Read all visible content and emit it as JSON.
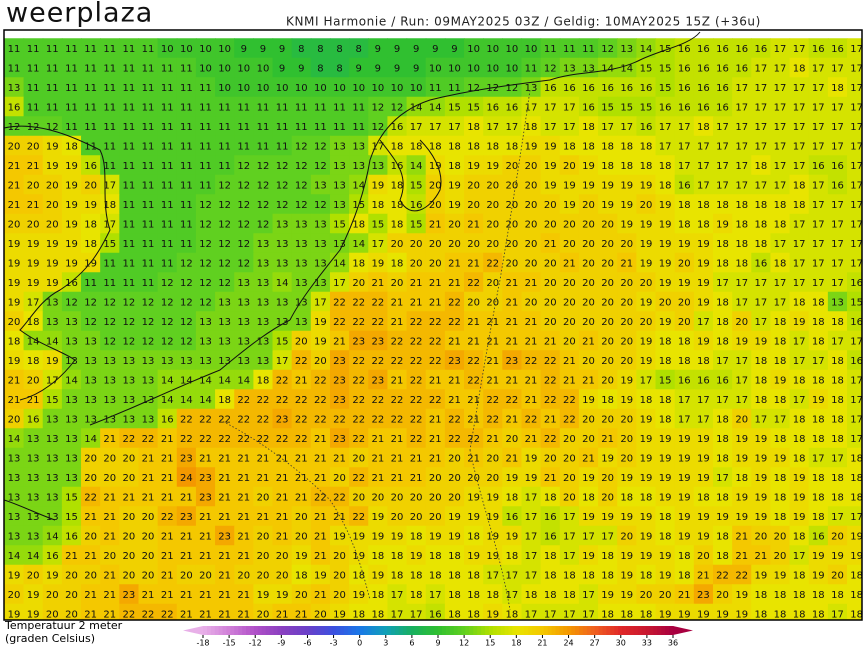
{
  "header": {
    "logo": "weerplaza",
    "run_info": "KNMI Harmonie / Run: 09MAY2025 03Z / Geldig: 10MAY2025 15Z (+36u)"
  },
  "map": {
    "rows": [
      [
        11,
        11,
        11,
        11,
        11,
        11,
        11,
        11,
        10,
        10,
        10,
        10,
        9,
        9,
        9,
        8,
        8,
        8,
        8,
        9,
        9,
        9,
        9,
        9,
        10,
        10,
        10,
        10,
        11,
        11,
        11,
        12,
        13,
        14,
        15,
        16,
        16,
        16,
        16,
        16,
        17,
        17,
        16,
        16,
        17
      ],
      [
        11,
        11,
        11,
        11,
        11,
        11,
        11,
        11,
        11,
        11,
        10,
        10,
        10,
        10,
        9,
        9,
        8,
        8,
        9,
        9,
        9,
        9,
        10,
        10,
        10,
        10,
        10,
        11,
        12,
        13,
        13,
        14,
        14,
        15,
        15,
        16,
        16,
        16,
        16,
        17,
        17,
        18,
        17,
        17,
        17
      ],
      [
        13,
        11,
        11,
        11,
        11,
        11,
        11,
        11,
        11,
        11,
        11,
        10,
        10,
        10,
        10,
        10,
        10,
        10,
        10,
        10,
        10,
        10,
        11,
        11,
        12,
        12,
        12,
        13,
        16,
        16,
        16,
        16,
        16,
        16,
        15,
        16,
        16,
        16,
        17,
        17,
        17,
        17,
        17,
        18,
        17
      ],
      [
        16,
        11,
        11,
        11,
        11,
        11,
        11,
        11,
        11,
        11,
        11,
        11,
        11,
        11,
        11,
        11,
        11,
        11,
        11,
        12,
        12,
        14,
        14,
        15,
        15,
        16,
        16,
        17,
        17,
        17,
        16,
        15,
        15,
        15,
        16,
        16,
        16,
        16,
        17,
        17,
        17,
        17,
        17,
        17,
        17
      ],
      [
        12,
        12,
        12,
        11,
        11,
        11,
        11,
        11,
        11,
        11,
        11,
        11,
        11,
        11,
        11,
        11,
        11,
        11,
        11,
        12,
        16,
        17,
        17,
        17,
        18,
        17,
        17,
        18,
        17,
        17,
        18,
        17,
        17,
        16,
        17,
        17,
        18,
        17,
        17,
        17,
        17,
        17,
        17,
        17,
        17
      ],
      [
        20,
        20,
        19,
        18,
        11,
        11,
        11,
        11,
        11,
        11,
        11,
        11,
        11,
        11,
        11,
        12,
        12,
        13,
        13,
        17,
        18,
        18,
        18,
        18,
        18,
        18,
        18,
        19,
        19,
        18,
        18,
        18,
        18,
        18,
        17,
        17,
        17,
        17,
        17,
        17,
        17,
        17,
        17,
        17,
        17
      ],
      [
        21,
        21,
        19,
        19,
        16,
        11,
        11,
        11,
        11,
        11,
        11,
        11,
        12,
        12,
        12,
        12,
        12,
        13,
        13,
        13,
        16,
        14,
        19,
        18,
        19,
        19,
        20,
        20,
        19,
        20,
        19,
        18,
        18,
        18,
        18,
        17,
        17,
        17,
        17,
        18,
        17,
        17,
        16,
        16,
        17
      ],
      [
        21,
        20,
        20,
        19,
        20,
        17,
        11,
        11,
        11,
        11,
        11,
        12,
        12,
        12,
        12,
        12,
        13,
        13,
        14,
        19,
        18,
        15,
        20,
        19,
        20,
        20,
        20,
        20,
        19,
        19,
        19,
        19,
        19,
        19,
        18,
        16,
        17,
        17,
        17,
        17,
        17,
        18,
        17,
        16,
        17
      ],
      [
        21,
        21,
        20,
        19,
        19,
        18,
        11,
        11,
        11,
        11,
        12,
        12,
        12,
        12,
        12,
        12,
        12,
        13,
        15,
        18,
        18,
        16,
        20,
        19,
        20,
        20,
        20,
        20,
        20,
        19,
        20,
        19,
        19,
        20,
        19,
        18,
        18,
        18,
        18,
        18,
        18,
        18,
        17,
        17,
        17
      ],
      [
        20,
        20,
        20,
        19,
        18,
        17,
        11,
        11,
        11,
        11,
        12,
        12,
        12,
        12,
        13,
        13,
        13,
        15,
        18,
        15,
        18,
        15,
        21,
        20,
        21,
        20,
        20,
        20,
        20,
        20,
        20,
        20,
        19,
        19,
        19,
        18,
        18,
        19,
        18,
        18,
        18,
        17,
        17,
        17,
        17
      ],
      [
        19,
        19,
        19,
        19,
        18,
        15,
        11,
        11,
        11,
        11,
        12,
        12,
        12,
        13,
        13,
        13,
        13,
        13,
        14,
        17,
        20,
        20,
        20,
        20,
        20,
        20,
        20,
        20,
        21,
        20,
        20,
        20,
        20,
        19,
        19,
        19,
        19,
        18,
        18,
        18,
        17,
        17,
        17,
        17,
        17
      ],
      [
        19,
        19,
        19,
        19,
        19,
        11,
        11,
        11,
        11,
        12,
        12,
        12,
        12,
        13,
        13,
        13,
        13,
        14,
        18,
        19,
        18,
        20,
        20,
        21,
        21,
        22,
        20,
        20,
        20,
        21,
        20,
        20,
        21,
        19,
        19,
        20,
        19,
        18,
        18,
        16,
        18,
        17,
        17,
        17,
        17
      ],
      [
        19,
        19,
        19,
        16,
        11,
        11,
        11,
        11,
        12,
        12,
        12,
        12,
        13,
        13,
        14,
        13,
        13,
        17,
        20,
        21,
        20,
        21,
        21,
        21,
        22,
        20,
        21,
        21,
        20,
        20,
        20,
        20,
        20,
        20,
        19,
        19,
        19,
        17,
        17,
        17,
        17,
        17,
        17,
        17,
        16
      ],
      [
        19,
        17,
        13,
        12,
        12,
        12,
        12,
        12,
        12,
        12,
        12,
        13,
        13,
        13,
        13,
        13,
        17,
        22,
        22,
        22,
        21,
        21,
        21,
        22,
        20,
        20,
        21,
        20,
        20,
        20,
        20,
        20,
        20,
        19,
        20,
        20,
        19,
        18,
        17,
        17,
        17,
        18,
        18,
        13,
        15
      ],
      [
        20,
        18,
        13,
        13,
        12,
        12,
        12,
        12,
        12,
        12,
        13,
        13,
        13,
        13,
        13,
        13,
        19,
        22,
        22,
        22,
        21,
        22,
        22,
        22,
        21,
        21,
        21,
        21,
        20,
        20,
        20,
        20,
        20,
        20,
        19,
        20,
        17,
        18,
        20,
        17,
        18,
        19,
        18,
        18,
        16
      ],
      [
        18,
        14,
        14,
        13,
        13,
        12,
        12,
        12,
        12,
        12,
        13,
        13,
        13,
        13,
        15,
        20,
        19,
        21,
        23,
        23,
        22,
        22,
        22,
        21,
        21,
        21,
        21,
        21,
        21,
        20,
        21,
        20,
        20,
        19,
        18,
        18,
        19,
        18,
        19,
        19,
        18,
        17,
        18,
        17,
        17
      ],
      [
        19,
        18,
        19,
        13,
        13,
        13,
        13,
        13,
        13,
        13,
        13,
        13,
        13,
        13,
        17,
        22,
        20,
        23,
        22,
        22,
        22,
        22,
        22,
        23,
        22,
        21,
        23,
        22,
        22,
        21,
        20,
        20,
        20,
        19,
        18,
        18,
        18,
        17,
        17,
        18,
        18,
        17,
        17,
        18,
        16
      ],
      [
        21,
        20,
        17,
        14,
        13,
        13,
        13,
        13,
        14,
        14,
        14,
        14,
        14,
        18,
        22,
        21,
        22,
        23,
        22,
        23,
        21,
        22,
        21,
        21,
        22,
        21,
        21,
        21,
        22,
        21,
        21,
        20,
        19,
        17,
        15,
        16,
        16,
        16,
        17,
        18,
        19,
        18,
        18,
        18,
        17
      ],
      [
        21,
        21,
        15,
        13,
        13,
        13,
        13,
        13,
        14,
        14,
        14,
        18,
        22,
        22,
        22,
        22,
        22,
        23,
        22,
        22,
        22,
        22,
        22,
        21,
        21,
        22,
        22,
        21,
        22,
        22,
        19,
        18,
        19,
        18,
        18,
        17,
        17,
        17,
        17,
        18,
        18,
        17,
        19,
        18,
        17
      ],
      [
        20,
        16,
        13,
        13,
        13,
        13,
        13,
        13,
        16,
        22,
        22,
        22,
        22,
        22,
        23,
        22,
        22,
        22,
        22,
        22,
        22,
        22,
        21,
        22,
        21,
        22,
        21,
        22,
        21,
        22,
        20,
        20,
        20,
        19,
        18,
        17,
        17,
        18,
        20,
        17,
        17,
        18,
        18,
        18,
        17
      ],
      [
        14,
        13,
        13,
        13,
        14,
        21,
        22,
        22,
        21,
        22,
        22,
        22,
        22,
        22,
        22,
        22,
        21,
        23,
        22,
        21,
        21,
        22,
        21,
        22,
        22,
        21,
        20,
        21,
        22,
        20,
        20,
        21,
        20,
        19,
        19,
        19,
        19,
        18,
        19,
        19,
        18,
        18,
        18,
        18,
        17
      ],
      [
        13,
        13,
        13,
        13,
        20,
        20,
        20,
        21,
        21,
        23,
        21,
        21,
        21,
        21,
        21,
        21,
        21,
        21,
        20,
        21,
        21,
        21,
        21,
        20,
        21,
        20,
        21,
        19,
        20,
        20,
        21,
        19,
        20,
        19,
        19,
        19,
        19,
        18,
        19,
        19,
        19,
        18,
        17,
        17,
        18
      ],
      [
        13,
        13,
        13,
        13,
        20,
        20,
        20,
        21,
        21,
        24,
        23,
        21,
        21,
        21,
        21,
        21,
        21,
        20,
        22,
        21,
        21,
        21,
        20,
        20,
        20,
        20,
        19,
        19,
        21,
        20,
        19,
        20,
        19,
        19,
        19,
        19,
        19,
        17,
        18,
        19,
        18,
        19,
        18,
        18,
        18
      ],
      [
        13,
        13,
        13,
        15,
        22,
        21,
        21,
        21,
        21,
        21,
        23,
        21,
        21,
        20,
        21,
        21,
        22,
        22,
        20,
        20,
        20,
        20,
        20,
        20,
        19,
        19,
        18,
        17,
        18,
        20,
        18,
        20,
        18,
        18,
        19,
        19,
        18,
        18,
        19,
        19,
        18,
        19,
        18,
        18,
        18
      ],
      [
        13,
        13,
        13,
        15,
        21,
        21,
        20,
        20,
        22,
        23,
        21,
        21,
        21,
        21,
        21,
        20,
        21,
        21,
        22,
        19,
        20,
        20,
        20,
        19,
        19,
        19,
        16,
        17,
        16,
        17,
        19,
        19,
        19,
        19,
        18,
        19,
        19,
        19,
        19,
        19,
        18,
        19,
        18,
        17,
        17
      ],
      [
        13,
        13,
        14,
        16,
        20,
        21,
        20,
        20,
        21,
        21,
        21,
        23,
        21,
        20,
        21,
        20,
        21,
        19,
        19,
        19,
        19,
        18,
        19,
        19,
        18,
        19,
        19,
        17,
        16,
        17,
        17,
        17,
        20,
        19,
        18,
        19,
        19,
        18,
        21,
        20,
        20,
        18,
        16,
        20,
        19
      ],
      [
        14,
        14,
        16,
        21,
        21,
        20,
        20,
        20,
        21,
        21,
        21,
        21,
        21,
        20,
        20,
        19,
        21,
        20,
        19,
        18,
        18,
        19,
        18,
        18,
        19,
        19,
        18,
        17,
        18,
        17,
        19,
        18,
        19,
        19,
        19,
        18,
        20,
        18,
        21,
        21,
        20,
        17,
        19,
        19,
        19
      ],
      [
        19,
        20,
        19,
        20,
        20,
        21,
        20,
        20,
        21,
        20,
        20,
        21,
        20,
        20,
        20,
        18,
        19,
        20,
        18,
        19,
        18,
        18,
        18,
        18,
        18,
        17,
        17,
        17,
        18,
        18,
        18,
        18,
        19,
        18,
        19,
        18,
        21,
        22,
        22,
        19,
        19,
        18,
        19,
        20,
        18
      ],
      [
        20,
        19,
        20,
        20,
        21,
        21,
        23,
        21,
        21,
        21,
        21,
        21,
        21,
        19,
        19,
        20,
        21,
        20,
        19,
        18,
        17,
        18,
        17,
        18,
        18,
        18,
        17,
        18,
        18,
        18,
        17,
        19,
        19,
        20,
        20,
        21,
        23,
        20,
        19,
        18,
        18,
        18,
        18,
        18,
        18
      ],
      [
        19,
        19,
        20,
        20,
        21,
        21,
        22,
        22,
        22,
        21,
        21,
        21,
        21,
        20,
        21,
        21,
        20,
        19,
        18,
        18,
        17,
        17,
        16,
        18,
        18,
        19,
        18,
        17,
        17,
        17,
        17,
        18,
        18,
        18,
        19,
        19,
        19,
        19,
        19,
        18,
        18,
        18,
        18,
        17,
        18
      ]
    ]
  },
  "legend": {
    "title": "Temperatuur 2 meter",
    "unit": "(graden Celsius)",
    "ticks": [
      -18,
      -15,
      -12,
      -9,
      -6,
      -3,
      0,
      3,
      6,
      9,
      12,
      15,
      18,
      21,
      24,
      27,
      30,
      33,
      36
    ],
    "colors": [
      "#e8b0e8",
      "#d080d8",
      "#b050c8",
      "#8a40c0",
      "#6a40c8",
      "#3c50e0",
      "#1a78e8",
      "#10a0b8",
      "#18b060",
      "#30c030",
      "#60d020",
      "#b0e000",
      "#e8e400",
      "#f4c800",
      "#f49800",
      "#f06020",
      "#e02828",
      "#c81830",
      "#a80040"
    ]
  }
}
